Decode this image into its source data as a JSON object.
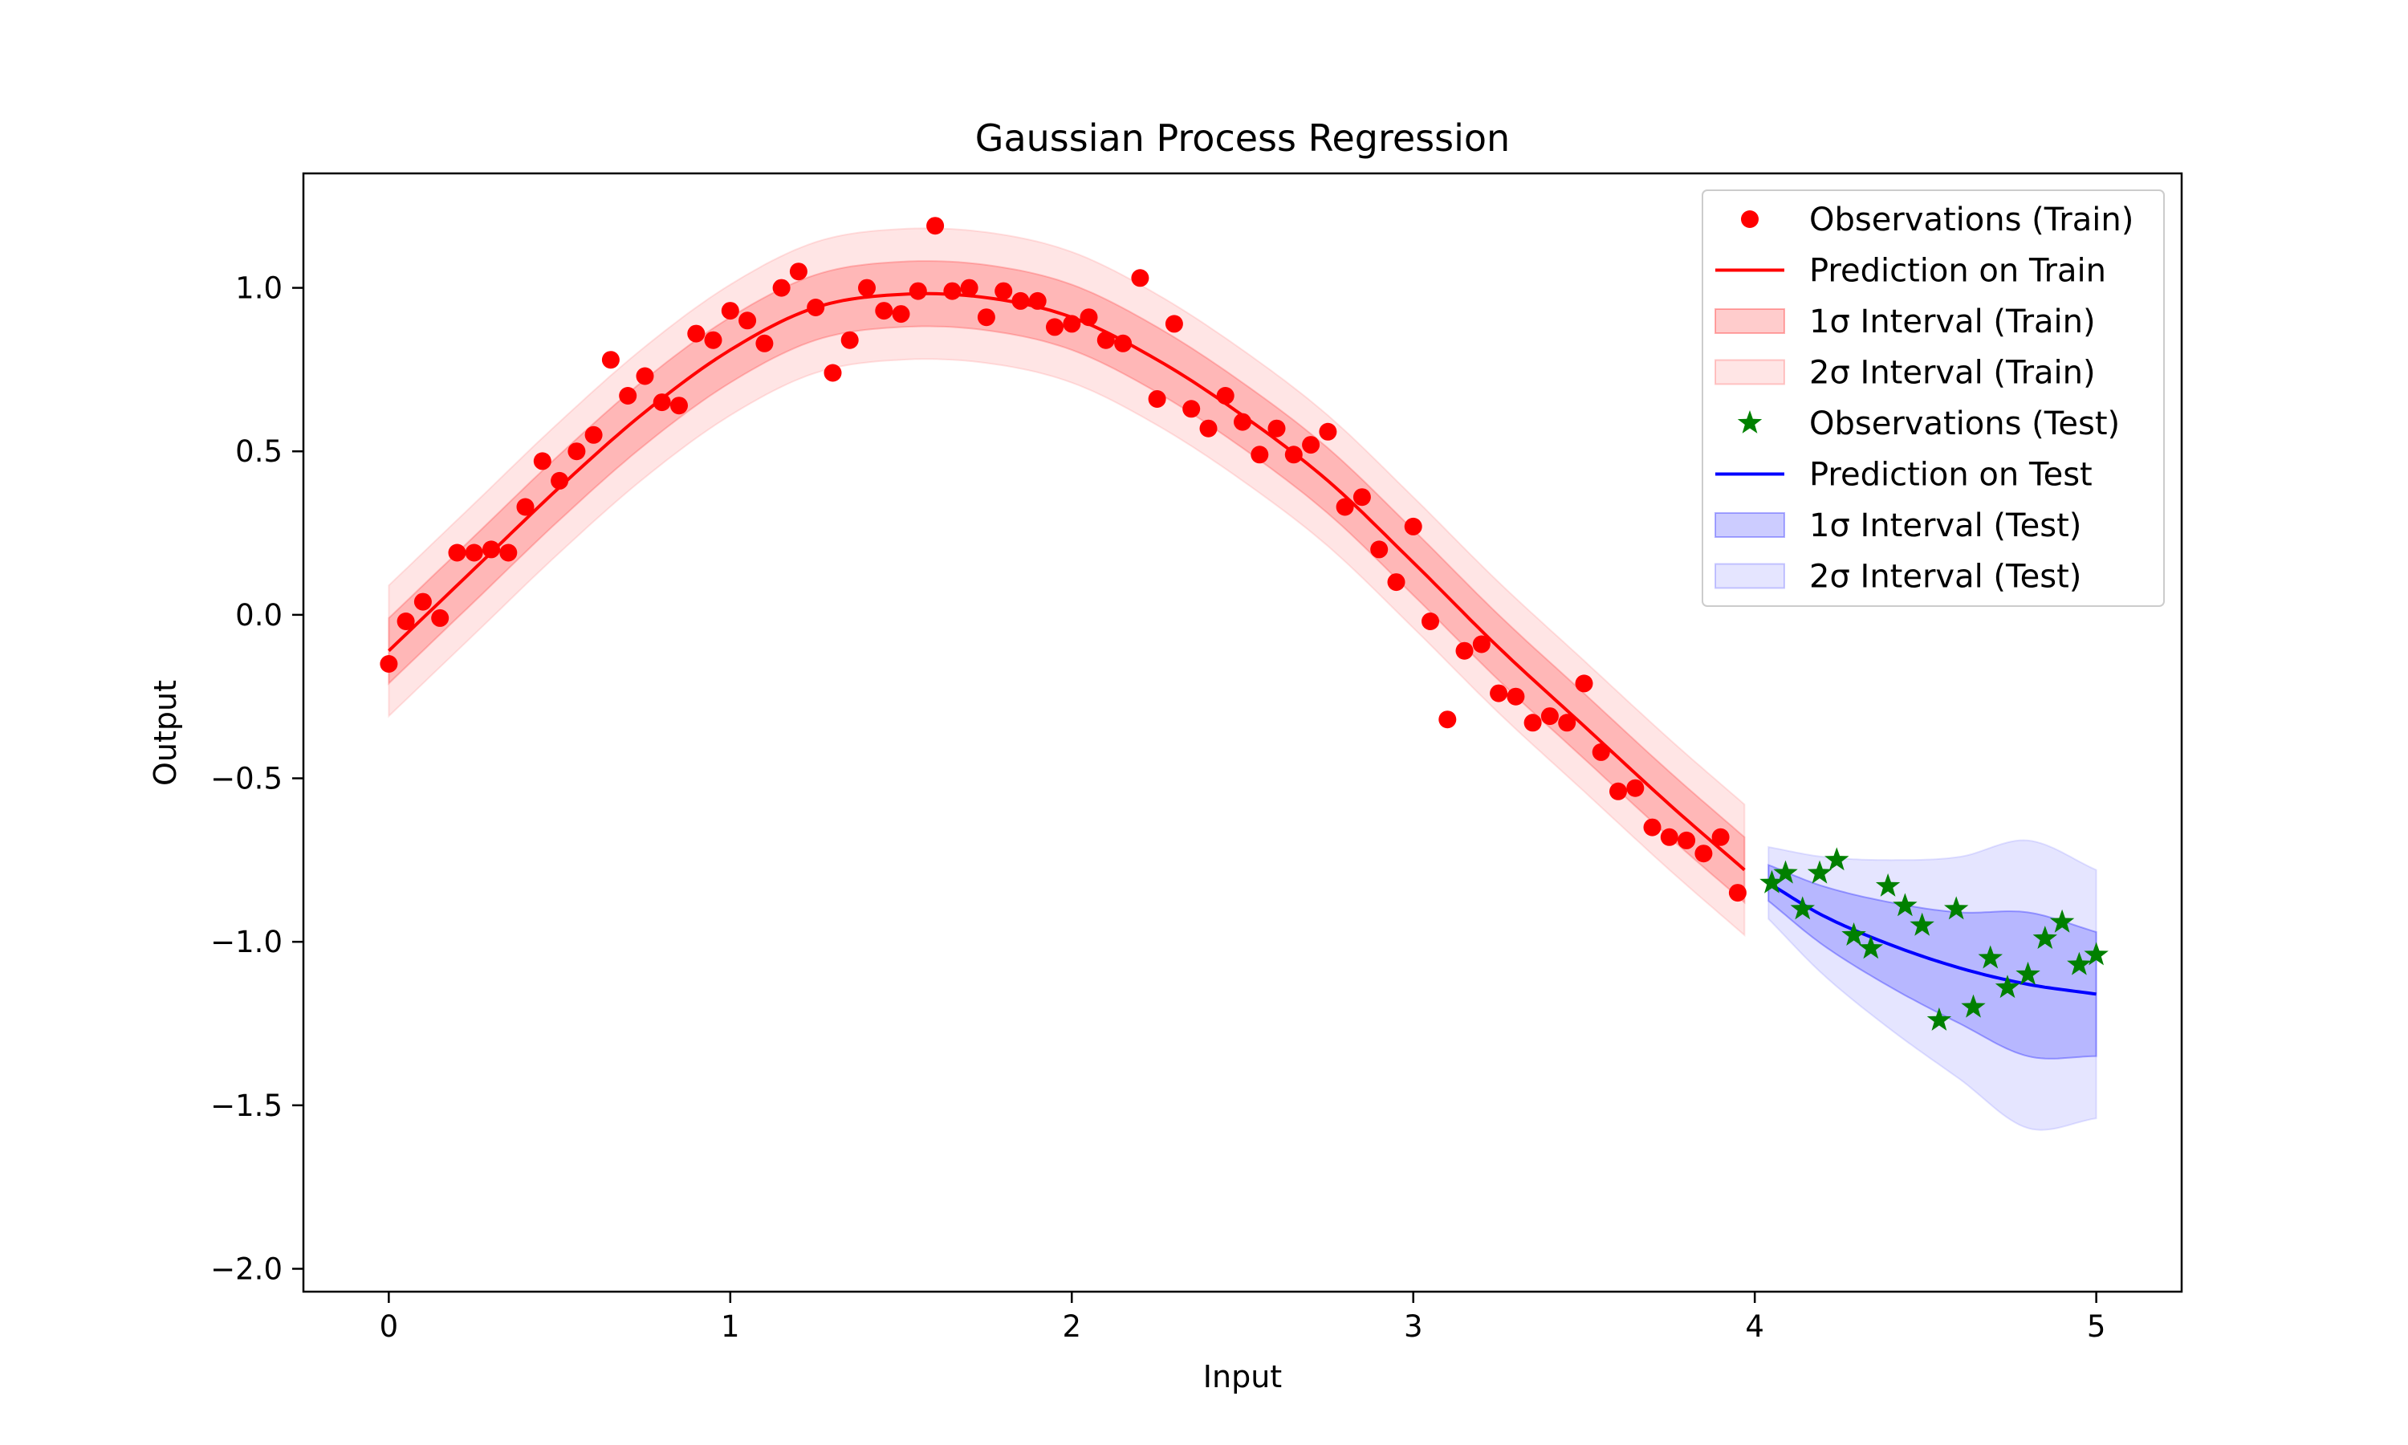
{
  "chart_data": {
    "type": "line",
    "title": "Gaussian Process Regression",
    "xlabel": "Input",
    "ylabel": "Output",
    "xlim": [
      -0.25,
      5.25
    ],
    "ylim": [
      -2.07,
      1.35
    ],
    "xticks": [
      0,
      1,
      2,
      3,
      4,
      5
    ],
    "xtick_labels": [
      "0",
      "1",
      "2",
      "3",
      "4",
      "5"
    ],
    "yticks": [
      1.0,
      0.5,
      0.0,
      -0.5,
      -1.0,
      -1.5,
      -2.0
    ],
    "ytick_labels": [
      "1.0",
      "0.5",
      "0.0",
      "−0.5",
      "−1.0",
      "−1.5",
      "−2.0"
    ],
    "grid": false,
    "legend_position": "top-right",
    "colors": {
      "train": "#ff0000",
      "test_line": "#0000ff",
      "test_points": "#008000",
      "band_train_1": "#ff0000",
      "band_train_2": "#ff0000",
      "band_test_1": "#0000ff",
      "band_test_2": "#0000ff"
    },
    "legend": [
      {
        "key": "obs_train",
        "label": "Observations (Train)",
        "kind": "marker-circle",
        "color": "#ff0000"
      },
      {
        "key": "pred_train",
        "label": "Prediction on Train",
        "kind": "line",
        "color": "#ff0000"
      },
      {
        "key": "ci1_train",
        "label": "1σ Interval (Train)",
        "kind": "patch",
        "color": "#ff0000",
        "opacity": 0.2
      },
      {
        "key": "ci2_train",
        "label": "2σ Interval (Train)",
        "kind": "patch",
        "color": "#ff0000",
        "opacity": 0.1
      },
      {
        "key": "obs_test",
        "label": "Observations (Test)",
        "kind": "marker-star",
        "color": "#008000"
      },
      {
        "key": "pred_test",
        "label": "Prediction on Test",
        "kind": "line",
        "color": "#0000ff"
      },
      {
        "key": "ci1_test",
        "label": "1σ Interval (Test)",
        "kind": "patch",
        "color": "#0000ff",
        "opacity": 0.2
      },
      {
        "key": "ci2_test",
        "label": "2σ Interval (Test)",
        "kind": "patch",
        "color": "#0000ff",
        "opacity": 0.1
      }
    ],
    "train_observations": {
      "x": [
        0.0,
        0.05,
        0.1,
        0.15,
        0.2,
        0.25,
        0.3,
        0.35,
        0.4,
        0.45,
        0.5,
        0.55,
        0.6,
        0.65,
        0.7,
        0.75,
        0.8,
        0.85,
        0.9,
        0.95,
        1.0,
        1.05,
        1.1,
        1.15,
        1.2,
        1.25,
        1.3,
        1.35,
        1.4,
        1.45,
        1.5,
        1.55,
        1.6,
        1.65,
        1.7,
        1.75,
        1.8,
        1.85,
        1.9,
        1.95,
        2.0,
        2.05,
        2.1,
        2.15,
        2.2,
        2.25,
        2.3,
        2.35,
        2.4,
        2.45,
        2.5,
        2.55,
        2.6,
        2.65,
        2.7,
        2.75,
        2.8,
        2.85,
        2.9,
        2.95,
        3.0,
        3.05,
        3.1,
        3.15,
        3.2,
        3.25,
        3.3,
        3.35,
        3.4,
        3.45,
        3.5,
        3.55,
        3.6,
        3.65,
        3.7,
        3.75,
        3.8,
        3.85,
        3.9,
        3.95
      ],
      "y": [
        -0.15,
        -0.02,
        0.04,
        -0.01,
        0.19,
        0.19,
        0.2,
        0.19,
        0.33,
        0.47,
        0.41,
        0.5,
        0.55,
        0.78,
        0.67,
        0.73,
        0.65,
        0.64,
        0.86,
        0.84,
        0.93,
        0.9,
        0.83,
        1.0,
        1.05,
        0.94,
        0.74,
        0.84,
        1.0,
        0.93,
        0.92,
        0.99,
        1.19,
        0.99,
        1.0,
        0.91,
        0.99,
        0.96,
        0.96,
        0.88,
        0.89,
        0.91,
        0.84,
        0.83,
        1.03,
        0.66,
        0.89,
        0.63,
        0.57,
        0.67,
        0.59,
        0.49,
        0.57,
        0.49,
        0.52,
        0.56,
        0.33,
        0.36,
        0.2,
        0.1,
        0.27,
        -0.02,
        -0.32,
        -0.11,
        -0.09,
        -0.24,
        -0.25,
        -0.33,
        -0.31,
        -0.33,
        -0.21,
        -0.42,
        -0.54,
        -0.53,
        -0.65,
        -0.68,
        -0.69,
        -0.73,
        -0.68,
        -0.85
      ]
    },
    "train_prediction": {
      "x": [
        0.0,
        0.25,
        0.5,
        0.75,
        1.0,
        1.25,
        1.5,
        1.75,
        2.0,
        2.25,
        2.5,
        2.75,
        3.0,
        3.25,
        3.5,
        3.75,
        3.97
      ],
      "y": [
        -0.11,
        0.14,
        0.39,
        0.62,
        0.81,
        0.94,
        0.98,
        0.97,
        0.91,
        0.78,
        0.61,
        0.41,
        0.16,
        -0.1,
        -0.34,
        -0.58,
        -0.78
      ],
      "sigma": 0.1
    },
    "test_observations": {
      "x": [
        4.05,
        4.09,
        4.14,
        4.19,
        4.24,
        4.29,
        4.34,
        4.39,
        4.44,
        4.49,
        4.54,
        4.59,
        4.64,
        4.69,
        4.74,
        4.8,
        4.85,
        4.9,
        4.95,
        5.0
      ],
      "y": [
        -0.82,
        -0.79,
        -0.9,
        -0.79,
        -0.75,
        -0.98,
        -1.02,
        -0.83,
        -0.89,
        -0.95,
        -1.24,
        -0.9,
        -1.2,
        -1.05,
        -1.14,
        -1.1,
        -0.99,
        -0.94,
        -1.07,
        -1.04
      ]
    },
    "test_prediction": {
      "x": [
        4.04,
        4.2,
        4.4,
        4.6,
        4.8,
        5.0
      ],
      "y": [
        -0.82,
        -0.92,
        -1.01,
        -1.08,
        -1.13,
        -1.16
      ],
      "sigma": [
        0.055,
        0.09,
        0.13,
        0.17,
        0.22,
        0.19
      ]
    }
  }
}
